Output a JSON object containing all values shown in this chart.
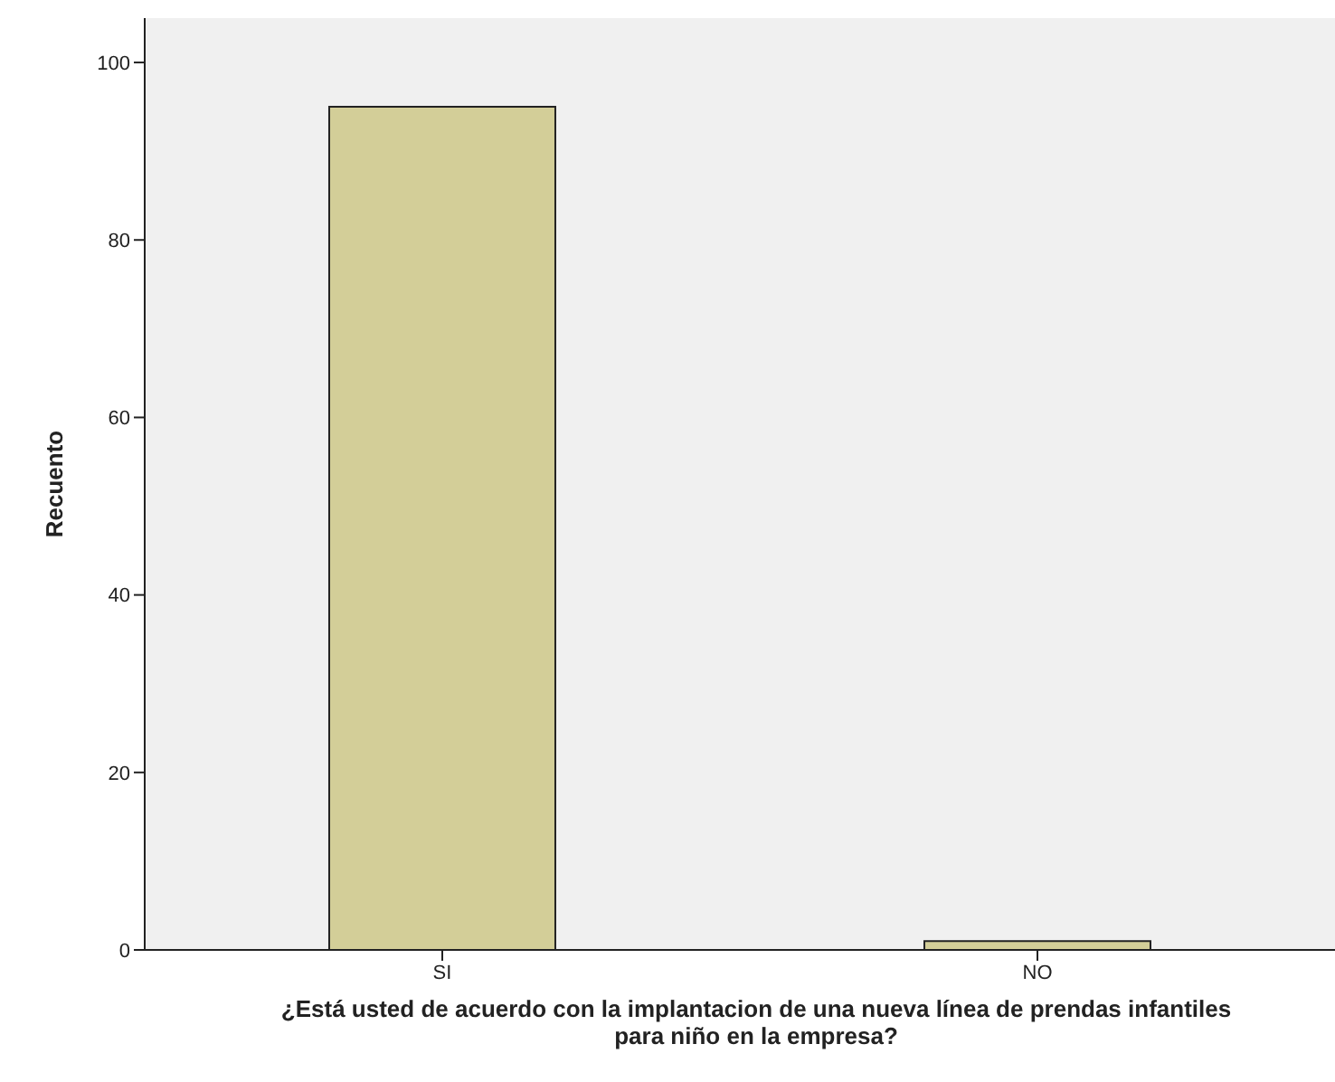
{
  "chart_data": {
    "type": "bar",
    "categories": [
      "SI",
      "NO"
    ],
    "values": [
      95,
      1
    ],
    "color": "#d3ce98",
    "ylim": [
      0,
      105
    ],
    "yticks": [
      0,
      20,
      40,
      60,
      80,
      100
    ],
    "ylabel": "Recuento",
    "xlabel": "¿Está usted de acuerdo con la implantacion de una nueva línea de prendas infantiles para niño en la empresa?",
    "grid": false
  }
}
